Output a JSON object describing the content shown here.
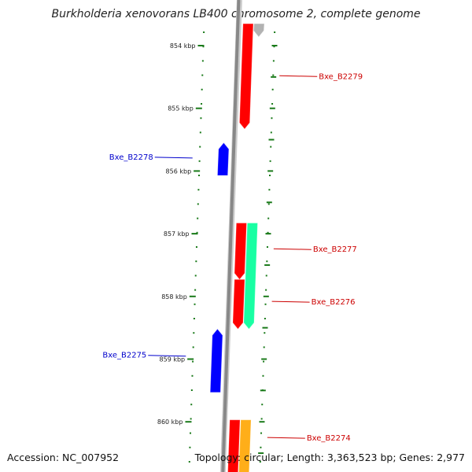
{
  "title": "Burkholderia xenovorans LB400 chromosome 2, complete genome",
  "footer": {
    "accession": "Accession: NC_007952",
    "summary": "Topology: circular; Length: 3,363,523 bp; Genes: 2,977"
  },
  "ticks": [
    {
      "label": "854 kbp",
      "kbp": 854
    },
    {
      "label": "855 kbp",
      "kbp": 855
    },
    {
      "label": "856 kbp",
      "kbp": 856
    },
    {
      "label": "857 kbp",
      "kbp": 857
    },
    {
      "label": "858 kbp",
      "kbp": 858
    },
    {
      "label": "859 kbp",
      "kbp": 859
    },
    {
      "label": "860 kbp",
      "kbp": 860
    }
  ],
  "features": [
    {
      "name": "Bxe_B2279",
      "strand": "+",
      "start_kbp": 853.65,
      "end_kbp": 855.33,
      "color": "#ff0000",
      "track": "inner"
    },
    {
      "name": "",
      "strand": "+",
      "start_kbp": 853.65,
      "end_kbp": 853.86,
      "color": "#aaaaaa",
      "track": "outer"
    },
    {
      "name": "Bxe_B2278",
      "strand": "-",
      "start_kbp": 855.55,
      "end_kbp": 856.07,
      "color": "#0000ff",
      "track": "inner"
    },
    {
      "name": "Bxe_B2277",
      "strand": "+",
      "start_kbp": 856.83,
      "end_kbp": 857.73,
      "color": "#ff0000",
      "track": "inner"
    },
    {
      "name": "",
      "strand": "+",
      "start_kbp": 856.83,
      "end_kbp": 858.52,
      "color": "#00ff99",
      "track": "outer"
    },
    {
      "name": "Bxe_B2276",
      "strand": "+",
      "start_kbp": 857.73,
      "end_kbp": 858.52,
      "color": "#ff0000",
      "track": "inner"
    },
    {
      "name": "Bxe_B2275",
      "strand": "-",
      "start_kbp": 858.52,
      "end_kbp": 859.53,
      "color": "#0000ff",
      "track": "inner"
    },
    {
      "name": "Bxe_B2274",
      "strand": "+",
      "start_kbp": 859.97,
      "end_kbp": 860.98,
      "color": "#ff0000",
      "track": "inner"
    },
    {
      "name": "",
      "strand": "+",
      "start_kbp": 859.97,
      "end_kbp": 860.98,
      "color": "#ffa500",
      "track": "outer"
    }
  ],
  "labels": [
    {
      "text": "Bxe_B2279",
      "kbp": 854.48,
      "side": "right",
      "color": "#cc0000"
    },
    {
      "text": "Bxe_B2278",
      "kbp": 855.78,
      "side": "left",
      "color": "#0000cc"
    },
    {
      "text": "Bxe_B2277",
      "kbp": 857.24,
      "side": "right",
      "color": "#cc0000"
    },
    {
      "text": "Bxe_B2276",
      "kbp": 858.08,
      "side": "right",
      "color": "#cc0000"
    },
    {
      "text": "Bxe_B2275",
      "kbp": 858.94,
      "side": "left",
      "color": "#0000cc"
    },
    {
      "text": "Bxe_B2274",
      "kbp": 860.25,
      "side": "right",
      "color": "#cc0000"
    }
  ],
  "colors": {
    "backbone": "#888888",
    "tick_mark": "#1a7a1a",
    "tick_label": "#222222"
  }
}
